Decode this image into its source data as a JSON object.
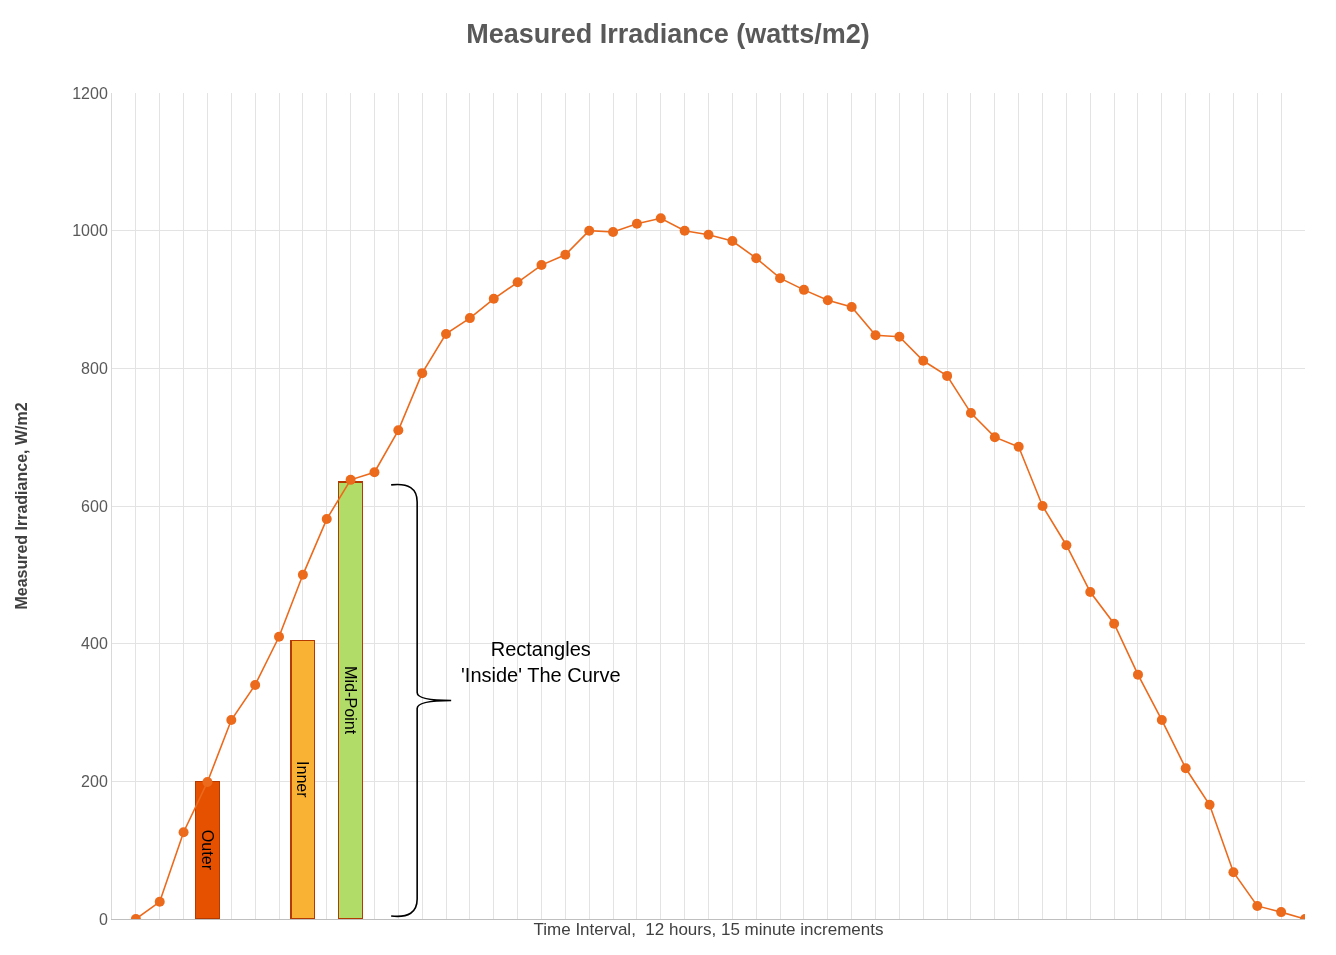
{
  "chart_data": {
    "type": "line",
    "title": "Measured Irradiance (watts/m2)",
    "xlabel": "Time Interval,  12 hours, 15 minute increments",
    "ylabel": "Measured Irradiance, W/m2",
    "categories": [
      null,
      null,
      null,
      null,
      null,
      null,
      null,
      null,
      null,
      null,
      null,
      null,
      null,
      null,
      null,
      null,
      null,
      null,
      null,
      null,
      null,
      null,
      null,
      null,
      null,
      null,
      null,
      null,
      null,
      null,
      null,
      null,
      null,
      null,
      null,
      null,
      null,
      null,
      null,
      null,
      null,
      null,
      null,
      null,
      null,
      null,
      null,
      null,
      null,
      null
    ],
    "series": [
      {
        "type": "bar",
        "name": "Outer",
        "color": "#e65100",
        "values": [
          null,
          null,
          null,
          200,
          null,
          null,
          null,
          null,
          null,
          null,
          null,
          null,
          null,
          null,
          null,
          null,
          null,
          null,
          null,
          null,
          null,
          null,
          null,
          null,
          null,
          null,
          null,
          null,
          null,
          null,
          null,
          null,
          null,
          null,
          null,
          null,
          null,
          null,
          null,
          null,
          null,
          null,
          null,
          null,
          null,
          null,
          null,
          null,
          null,
          null
        ]
      },
      {
        "type": "bar",
        "name": "Inner",
        "color": "#f9b233",
        "values": [
          null,
          null,
          null,
          null,
          null,
          null,
          null,
          405,
          null,
          null,
          null,
          null,
          null,
          null,
          null,
          null,
          null,
          null,
          null,
          null,
          null,
          null,
          null,
          null,
          null,
          null,
          null,
          null,
          null,
          null,
          null,
          null,
          null,
          null,
          null,
          null,
          null,
          null,
          null,
          null,
          null,
          null,
          null,
          null,
          null,
          null,
          null,
          null,
          null,
          null
        ]
      },
      {
        "type": "bar",
        "name": "Mid-Point",
        "color": "#b2dc68",
        "values": [
          null,
          null,
          null,
          null,
          null,
          null,
          null,
          null,
          null,
          635,
          null,
          null,
          null,
          null,
          null,
          null,
          null,
          null,
          null,
          null,
          null,
          null,
          null,
          null,
          null,
          null,
          null,
          null,
          null,
          null,
          null,
          null,
          null,
          null,
          null,
          null,
          null,
          null,
          null,
          null,
          null,
          null,
          null,
          null,
          null,
          null,
          null,
          null,
          null,
          null
        ]
      },
      {
        "color": "#ec6a1c",
        "values": [
          0,
          25,
          126,
          199,
          289,
          340,
          410,
          500,
          581,
          638,
          649,
          710,
          793,
          850,
          873,
          901,
          925,
          950,
          965,
          1000,
          998,
          1010,
          1018,
          1000,
          994,
          985,
          960,
          931,
          914,
          899,
          889,
          848,
          846,
          811,
          789,
          735,
          700,
          686,
          600,
          543,
          475,
          429,
          355,
          289,
          219,
          166,
          68,
          19,
          10,
          0
        ]
      }
    ],
    "ylim": [
      0,
      1200
    ],
    "yticks": [
      0,
      200,
      400,
      600,
      800,
      1000,
      1200
    ],
    "grid": true,
    "legend": false,
    "tick_labels": "y",
    "marker": "circle",
    "line_style": "solid",
    "stacked": true,
    "annotations": [
      "Rectangles\n'Inside' The Curve"
    ]
  }
}
